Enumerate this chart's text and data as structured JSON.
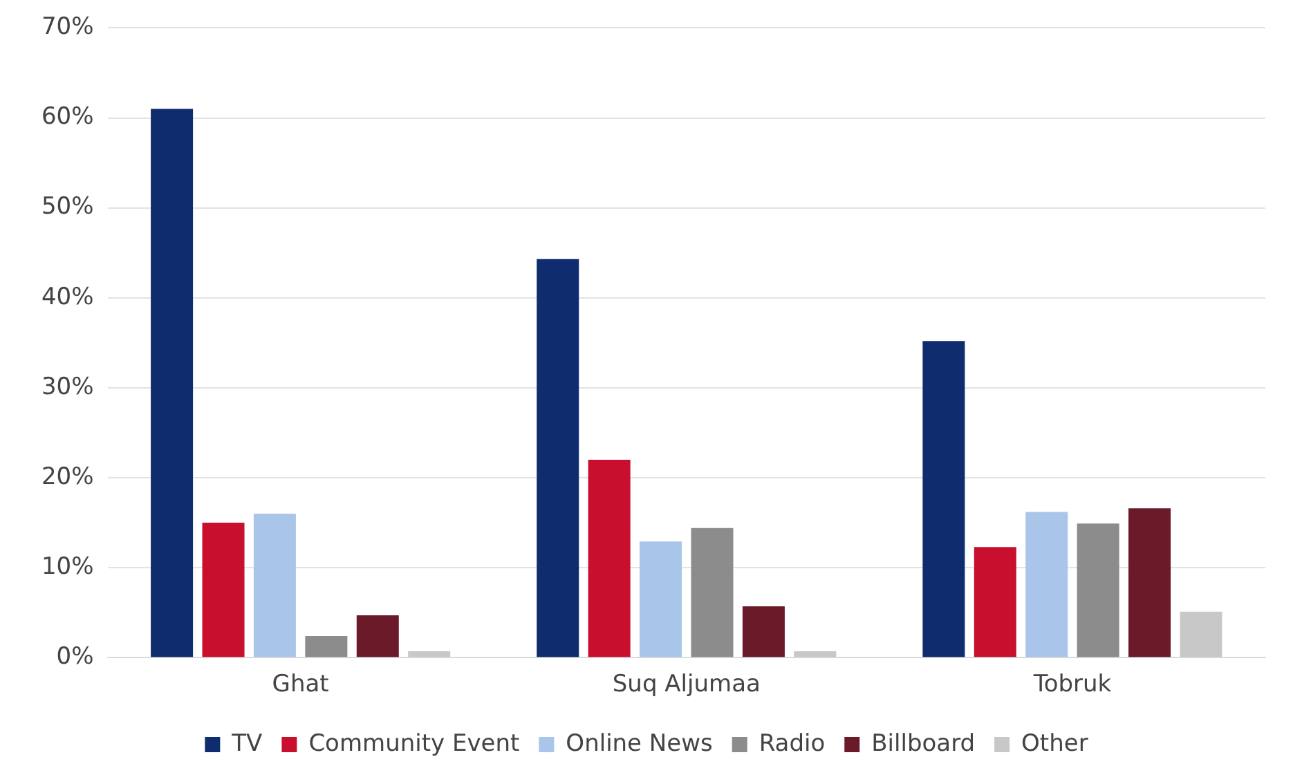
{
  "chart_data": {
    "type": "bar",
    "categories": [
      "Ghat",
      "Suq Aljumaa",
      "Tobruk"
    ],
    "series": [
      {
        "name": "TV",
        "color": "#0e2c6e",
        "values": [
          61,
          44.3,
          35.2
        ]
      },
      {
        "name": "Community Event",
        "color": "#c8102e",
        "values": [
          15,
          22,
          12.3
        ]
      },
      {
        "name": "Online News",
        "color": "#a9c6ea",
        "values": [
          16,
          12.9,
          16.2
        ]
      },
      {
        "name": "Radio",
        "color": "#8c8c8c",
        "values": [
          2.4,
          14.4,
          14.9
        ]
      },
      {
        "name": "Billboard",
        "color": "#6b1a2a",
        "values": [
          4.7,
          5.7,
          16.6
        ]
      },
      {
        "name": "Other",
        "color": "#c8c8c8",
        "values": [
          0.7,
          0.7,
          5.1
        ]
      }
    ],
    "ylim": [
      0,
      70
    ],
    "yticks": [
      {
        "value": 0,
        "label": "0%"
      },
      {
        "value": 10,
        "label": "10%"
      },
      {
        "value": 20,
        "label": "20%"
      },
      {
        "value": 30,
        "label": "30%"
      },
      {
        "value": 40,
        "label": "40%"
      },
      {
        "value": 50,
        "label": "50%"
      },
      {
        "value": 60,
        "label": "60%"
      },
      {
        "value": 70,
        "label": "70%"
      }
    ],
    "grid": "y",
    "legend": "bottom"
  }
}
